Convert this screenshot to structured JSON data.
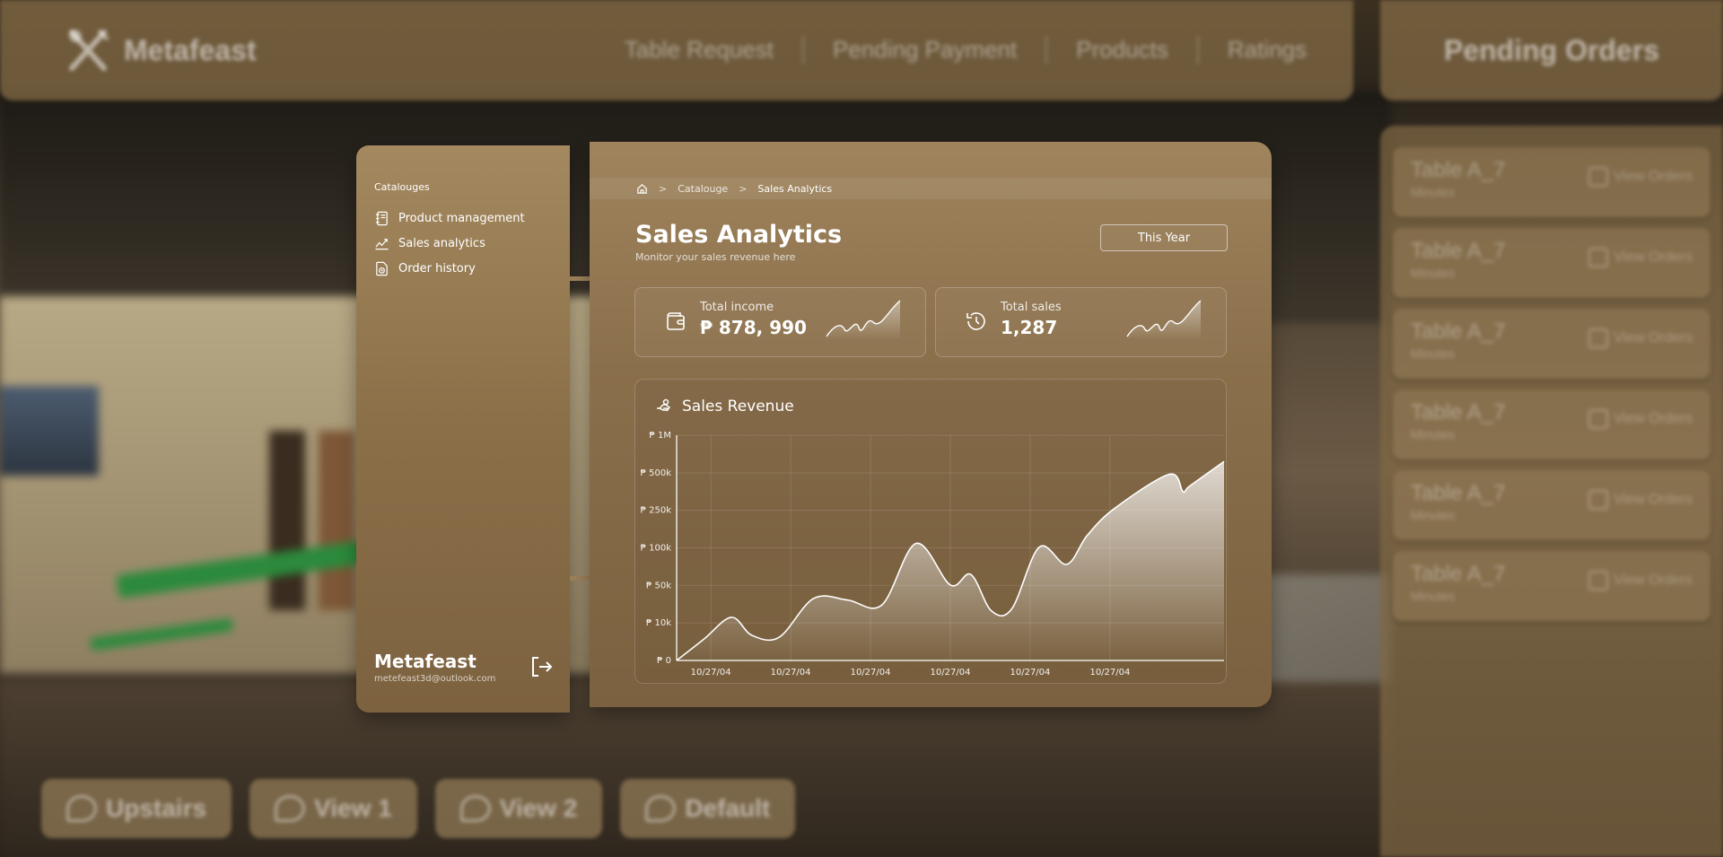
{
  "app": {
    "brand": "Metafeast",
    "nav": [
      "Table Request",
      "Pending Payment",
      "Products",
      "Ratings"
    ]
  },
  "pending_orders": {
    "title": "Pending Orders",
    "orders": [
      {
        "table": "Table A_7",
        "sub": "Minutes",
        "action": "View Orders"
      },
      {
        "table": "Table A_7",
        "sub": "Minutes",
        "action": "View Orders"
      },
      {
        "table": "Table A_7",
        "sub": "Minutes",
        "action": "View Orders"
      },
      {
        "table": "Table A_7",
        "sub": "Minutes",
        "action": "View Orders"
      },
      {
        "table": "Table A_7",
        "sub": "Minutes",
        "action": "View Orders"
      },
      {
        "table": "Table A_7",
        "sub": "Minutes",
        "action": "View Orders"
      }
    ]
  },
  "views": [
    "Upstairs",
    "View 1",
    "View 2",
    "Default"
  ],
  "sidebar": {
    "heading": "Catalouges",
    "items": [
      {
        "label": "Product management",
        "icon": "notebook-icon"
      },
      {
        "label": "Sales analytics",
        "icon": "chart-line-icon"
      },
      {
        "label": "Order history",
        "icon": "clock-document-icon"
      }
    ],
    "footer": {
      "name": "Metafeast",
      "email": "metefeast3d@outlook.com"
    }
  },
  "breadcrumb": {
    "sep": ">",
    "section": "Catalouge",
    "current": "Sales Analytics"
  },
  "page": {
    "title": "Sales Analytics",
    "subtitle": "Monitor your sales revenue here",
    "period": "This Year"
  },
  "stats": {
    "income": {
      "label": "Total income",
      "value": "₱ 878, 990"
    },
    "sales": {
      "label": "Total sales",
      "value": "1,287"
    }
  },
  "chart_data": {
    "type": "area",
    "title": "Sales Revenue",
    "y_tick_labels": [
      "₱ 0",
      "₱ 10k",
      "₱ 50k",
      "₱ 100k",
      "₱ 250k",
      "₱ 500k",
      "₱ 1M"
    ],
    "x_tick_labels": [
      "10/27/04",
      "10/27/04",
      "10/27/04",
      "10/27/04",
      "10/27/04",
      "10/27/04"
    ],
    "grid": true,
    "series": [
      {
        "x": [
          0,
          0.4,
          0.8,
          1.1,
          1.5,
          2.0,
          2.5,
          3.0,
          3.5,
          4.0,
          4.3,
          4.6,
          4.9,
          5.3,
          5.7,
          6.0,
          6.4,
          7.2,
          7.4,
          7.5,
          8.0
        ],
        "y_level": [
          0,
          0.57,
          1.15,
          0.67,
          0.62,
          1.65,
          1.61,
          1.48,
          3.12,
          2.01,
          2.29,
          1.32,
          1.38,
          3.02,
          2.56,
          3.33,
          4.05,
          4.96,
          4.5,
          4.65,
          5.3
        ]
      }
    ],
    "colors": {
      "line": "#ffffff",
      "fill_top": "#ffffff"
    }
  }
}
